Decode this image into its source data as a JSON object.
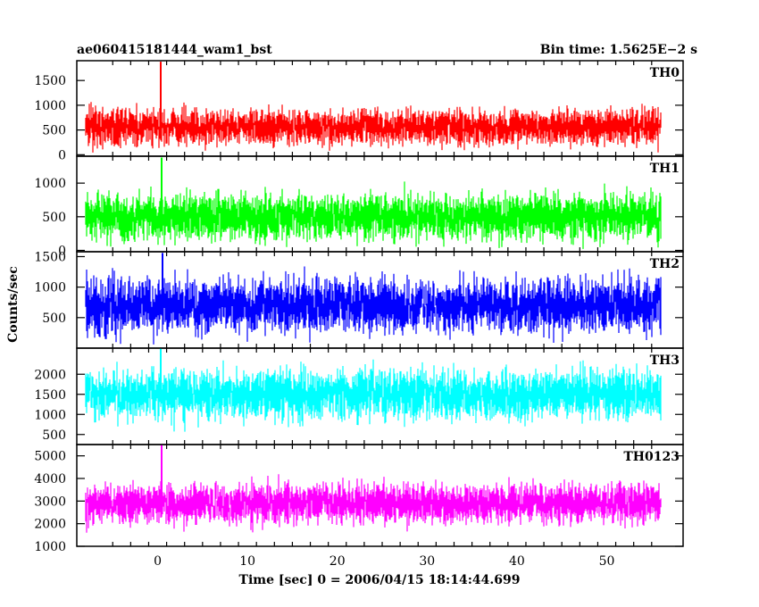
{
  "header": {
    "title": "ae060415181444_wam1_bst",
    "bin_time": "Bin time: 1.5625E−2 s"
  },
  "chart_data": {
    "type": "line",
    "title": "ae060415181444_wam1_bst",
    "xlabel": "Time [sec] 0 = 2006/04/15 18:14:44.699",
    "ylabel": "Counts/sec",
    "xlim": [
      -9,
      58.5
    ],
    "x_ticks": [
      0,
      10,
      20,
      30,
      40,
      50
    ],
    "x_range_data": [
      -8,
      56
    ],
    "bin_time_s": 0.015625,
    "grid": false,
    "panels": [
      {
        "name": "TH0",
        "color": "#ff0000",
        "ylim": [
          -30,
          1900
        ],
        "ticks": [
          0,
          500,
          1000,
          1500
        ],
        "mean": 560,
        "noise": 250,
        "floor": 0,
        "ceiling": 1880,
        "spike_x": 0.3,
        "spike_y": 1880
      },
      {
        "name": "TH1",
        "color": "#00ff00",
        "ylim": [
          -20,
          1400
        ],
        "ticks": [
          0,
          500,
          1000
        ],
        "mean": 500,
        "noise": 240,
        "floor": 0,
        "ceiling": 1380,
        "spike_x": 0.4,
        "spike_y": 1380
      },
      {
        "name": "TH2",
        "color": "#0000ff",
        "ylim": [
          0,
          1580
        ],
        "ticks": [
          500,
          1000,
          1500
        ],
        "mean": 700,
        "noise": 310,
        "floor": 60,
        "ceiling": 1580,
        "spike_x": 0.5,
        "spike_y": 1560
      },
      {
        "name": "TH3",
        "color": "#00ffff",
        "ylim": [
          250,
          2650
        ],
        "ticks": [
          500,
          1000,
          1500,
          2000
        ],
        "mean": 1500,
        "noise": 430,
        "floor": 300,
        "ceiling": 2650,
        "spike_x": 0.3,
        "spike_y": 2650
      },
      {
        "name": "TH0123",
        "color": "#ff00ff",
        "ylim": [
          1000,
          5500
        ],
        "ticks": [
          1000,
          2000,
          3000,
          4000,
          5000
        ],
        "mean": 2900,
        "noise": 620,
        "floor": 1000,
        "ceiling": 5500,
        "spike_x": 0.4,
        "spike_y": 5500
      }
    ]
  }
}
